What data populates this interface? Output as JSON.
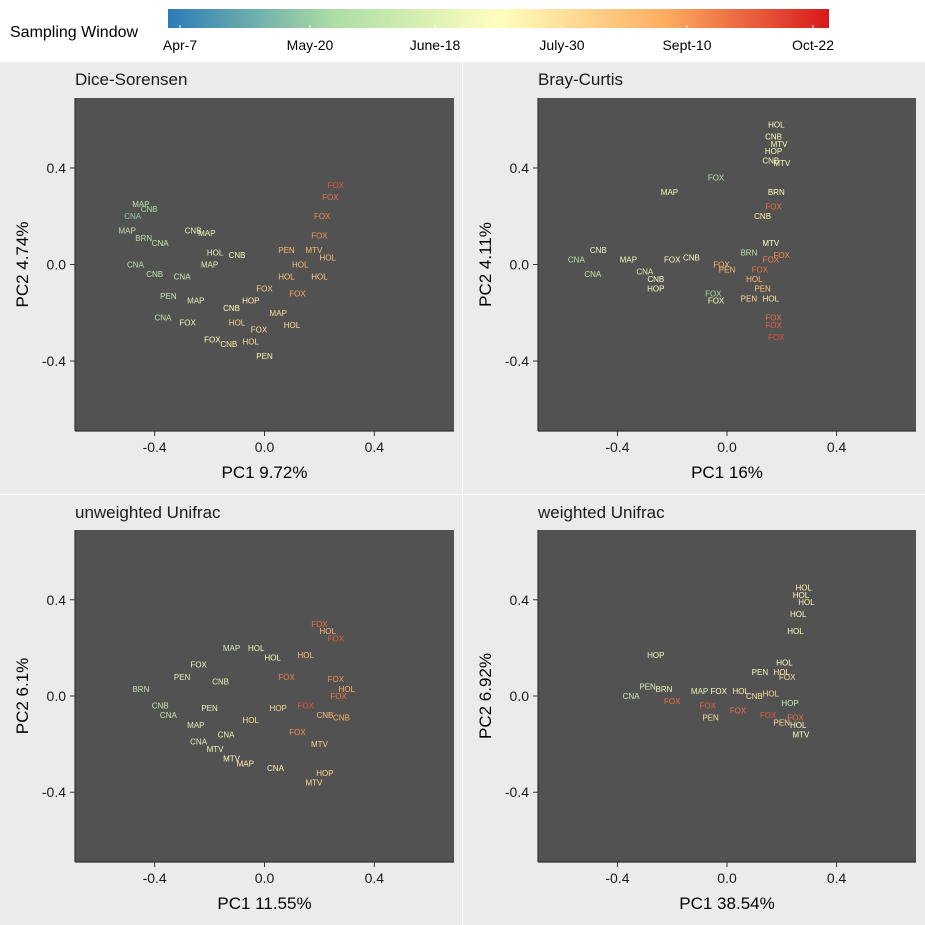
{
  "legend": {
    "title": "Sampling Window",
    "ticks": [
      "Apr-7",
      "May-20",
      "June-18",
      "July-30",
      "Sept-10",
      "Oct-22"
    ],
    "colors": [
      "#2c7bb6",
      "#abdda4",
      "#ffffbf",
      "#fdae61",
      "#d7191c"
    ]
  },
  "chart_data": [
    {
      "type": "scatter",
      "title": "Dice-Sorensen",
      "xlabel": "PC1 9.72%",
      "ylabel": "PC2 4.74%",
      "xlim": [
        -0.69,
        0.69
      ],
      "ylim": [
        -0.69,
        0.69
      ],
      "xticks": [
        -0.4,
        0.0,
        0.4
      ],
      "yticks": [
        -0.4,
        0.0,
        0.4
      ],
      "xtick_labels": [
        "-0.4",
        "0.0",
        "0.4"
      ],
      "ytick_labels": [
        "-0.4",
        "0.0",
        "0.4"
      ],
      "color_variable": "Sampling Window",
      "points": [
        {
          "x": -0.45,
          "y": 0.25,
          "label": "MAP",
          "window": 0.3
        },
        {
          "x": -0.42,
          "y": 0.23,
          "label": "CNB",
          "window": 0.25
        },
        {
          "x": -0.48,
          "y": 0.2,
          "label": "CNA",
          "window": 0.2
        },
        {
          "x": -0.5,
          "y": 0.14,
          "label": "MAP",
          "window": 0.3
        },
        {
          "x": -0.44,
          "y": 0.11,
          "label": "BRN",
          "window": 0.28
        },
        {
          "x": -0.38,
          "y": 0.09,
          "label": "CNA",
          "window": 0.35
        },
        {
          "x": -0.26,
          "y": 0.14,
          "label": "CNB",
          "window": 0.4
        },
        {
          "x": -0.21,
          "y": 0.13,
          "label": "MAP",
          "window": 0.45
        },
        {
          "x": -0.18,
          "y": 0.05,
          "label": "HOL",
          "window": 0.42
        },
        {
          "x": -0.2,
          "y": 0.0,
          "label": "MAP",
          "window": 0.4
        },
        {
          "x": -0.1,
          "y": 0.04,
          "label": "CNB",
          "window": 0.48
        },
        {
          "x": -0.47,
          "y": 0.0,
          "label": "CNA",
          "window": 0.3
        },
        {
          "x": -0.4,
          "y": -0.04,
          "label": "CNB",
          "window": 0.32
        },
        {
          "x": -0.3,
          "y": -0.05,
          "label": "CNA",
          "window": 0.36
        },
        {
          "x": -0.35,
          "y": -0.13,
          "label": "PEN",
          "window": 0.34
        },
        {
          "x": -0.25,
          "y": -0.15,
          "label": "MAP",
          "window": 0.4
        },
        {
          "x": -0.37,
          "y": -0.22,
          "label": "CNA",
          "window": 0.3
        },
        {
          "x": -0.28,
          "y": -0.24,
          "label": "FOX",
          "window": 0.45
        },
        {
          "x": -0.19,
          "y": -0.31,
          "label": "FOX",
          "window": 0.5
        },
        {
          "x": -0.13,
          "y": -0.33,
          "label": "CNB",
          "window": 0.55
        },
        {
          "x": -0.05,
          "y": -0.32,
          "label": "HOL",
          "window": 0.6
        },
        {
          "x": 0.0,
          "y": -0.38,
          "label": "PEN",
          "window": 0.55
        },
        {
          "x": -0.12,
          "y": -0.18,
          "label": "CNB",
          "window": 0.5
        },
        {
          "x": -0.05,
          "y": -0.15,
          "label": "HOP",
          "window": 0.55
        },
        {
          "x": 0.0,
          "y": -0.1,
          "label": "FOX",
          "window": 0.65
        },
        {
          "x": 0.05,
          "y": -0.2,
          "label": "MAP",
          "window": 0.6
        },
        {
          "x": 0.1,
          "y": -0.25,
          "label": "HOL",
          "window": 0.6
        },
        {
          "x": 0.08,
          "y": -0.05,
          "label": "HOL",
          "window": 0.68
        },
        {
          "x": 0.13,
          "y": 0.0,
          "label": "HOL",
          "window": 0.7
        },
        {
          "x": 0.12,
          "y": -0.12,
          "label": "FOX",
          "window": 0.75
        },
        {
          "x": 0.18,
          "y": 0.06,
          "label": "MTV",
          "window": 0.72
        },
        {
          "x": 0.2,
          "y": 0.12,
          "label": "FOX",
          "window": 0.8
        },
        {
          "x": 0.21,
          "y": 0.2,
          "label": "FOX",
          "window": 0.82
        },
        {
          "x": 0.24,
          "y": 0.28,
          "label": "FOX",
          "window": 0.85
        },
        {
          "x": 0.26,
          "y": 0.33,
          "label": "FOX",
          "window": 0.9
        },
        {
          "x": 0.2,
          "y": -0.05,
          "label": "HOL",
          "window": 0.66
        },
        {
          "x": 0.23,
          "y": 0.03,
          "label": "HOL",
          "window": 0.7
        },
        {
          "x": 0.08,
          "y": 0.06,
          "label": "PEN",
          "window": 0.73
        },
        {
          "x": -0.1,
          "y": -0.24,
          "label": "HOL",
          "window": 0.62
        },
        {
          "x": -0.02,
          "y": -0.27,
          "label": "FOX",
          "window": 0.6
        }
      ]
    },
    {
      "type": "scatter",
      "title": "Bray-Curtis",
      "xlabel": "PC1 16%",
      "ylabel": "PC2 4.11%",
      "xlim": [
        -0.69,
        0.69
      ],
      "ylim": [
        -0.69,
        0.69
      ],
      "xticks": [
        -0.4,
        0.0,
        0.4
      ],
      "yticks": [
        -0.4,
        0.0,
        0.4
      ],
      "xtick_labels": [
        "-0.4",
        "0.0",
        "0.4"
      ],
      "ytick_labels": [
        "-0.4",
        "0.0",
        "0.4"
      ],
      "color_variable": "Sampling Window",
      "points": [
        {
          "x": 0.18,
          "y": 0.58,
          "label": "HOL",
          "window": 0.5
        },
        {
          "x": 0.17,
          "y": 0.53,
          "label": "CNB",
          "window": 0.5
        },
        {
          "x": 0.19,
          "y": 0.5,
          "label": "MTV",
          "window": 0.52
        },
        {
          "x": 0.17,
          "y": 0.47,
          "label": "HOP",
          "window": 0.5
        },
        {
          "x": 0.16,
          "y": 0.43,
          "label": "CNB",
          "window": 0.52
        },
        {
          "x": 0.2,
          "y": 0.42,
          "label": "MTV",
          "window": 0.5
        },
        {
          "x": -0.21,
          "y": 0.3,
          "label": "MAP",
          "window": 0.45
        },
        {
          "x": -0.04,
          "y": 0.36,
          "label": "FOX",
          "window": 0.3
        },
        {
          "x": 0.18,
          "y": 0.3,
          "label": "BRN",
          "window": 0.5
        },
        {
          "x": 0.17,
          "y": 0.24,
          "label": "FOX",
          "window": 0.85
        },
        {
          "x": 0.13,
          "y": 0.2,
          "label": "CNB",
          "window": 0.55
        },
        {
          "x": 0.16,
          "y": 0.09,
          "label": "MTV",
          "window": 0.5
        },
        {
          "x": 0.08,
          "y": 0.05,
          "label": "BRN",
          "window": 0.3
        },
        {
          "x": -0.47,
          "y": 0.06,
          "label": "CNB",
          "window": 0.45
        },
        {
          "x": -0.55,
          "y": 0.02,
          "label": "CNA",
          "window": 0.3
        },
        {
          "x": -0.36,
          "y": 0.02,
          "label": "MAP",
          "window": 0.45
        },
        {
          "x": -0.2,
          "y": 0.02,
          "label": "FOX",
          "window": 0.5
        },
        {
          "x": -0.13,
          "y": 0.03,
          "label": "CNB",
          "window": 0.5
        },
        {
          "x": -0.3,
          "y": -0.03,
          "label": "CNA",
          "window": 0.4
        },
        {
          "x": -0.26,
          "y": -0.06,
          "label": "CNB",
          "window": 0.5
        },
        {
          "x": -0.26,
          "y": -0.1,
          "label": "HOP",
          "window": 0.5
        },
        {
          "x": -0.49,
          "y": -0.04,
          "label": "CNA",
          "window": 0.32
        },
        {
          "x": -0.05,
          "y": -0.12,
          "label": "FOX",
          "window": 0.25
        },
        {
          "x": -0.04,
          "y": -0.15,
          "label": "FOX",
          "window": 0.5
        },
        {
          "x": 0.0,
          "y": -0.02,
          "label": "PEN",
          "window": 0.7
        },
        {
          "x": 0.08,
          "y": -0.14,
          "label": "PEN",
          "window": 0.6
        },
        {
          "x": 0.16,
          "y": -0.14,
          "label": "HOL",
          "window": 0.55
        },
        {
          "x": 0.17,
          "y": -0.22,
          "label": "FOX",
          "window": 0.85
        },
        {
          "x": 0.17,
          "y": -0.25,
          "label": "FOX",
          "window": 0.88
        },
        {
          "x": 0.18,
          "y": -0.3,
          "label": "FOX",
          "window": 0.9
        },
        {
          "x": 0.12,
          "y": -0.02,
          "label": "FOX",
          "window": 0.85
        },
        {
          "x": 0.16,
          "y": 0.02,
          "label": "FOX",
          "window": 0.82
        },
        {
          "x": 0.2,
          "y": 0.04,
          "label": "FOX",
          "window": 0.8
        },
        {
          "x": 0.1,
          "y": -0.06,
          "label": "HOL",
          "window": 0.7
        },
        {
          "x": 0.13,
          "y": -0.1,
          "label": "PEN",
          "window": 0.68
        },
        {
          "x": -0.02,
          "y": 0.0,
          "label": "FOX",
          "window": 0.72
        }
      ]
    },
    {
      "type": "scatter",
      "title": "unweighted Unifrac",
      "xlabel": "PC1 11.55%",
      "ylabel": "PC2 6.1%",
      "xlim": [
        -0.69,
        0.69
      ],
      "ylim": [
        -0.69,
        0.69
      ],
      "xticks": [
        -0.4,
        0.0,
        0.4
      ],
      "yticks": [
        -0.4,
        0.0,
        0.4
      ],
      "xtick_labels": [
        "-0.4",
        "0.0",
        "0.4"
      ],
      "ytick_labels": [
        "-0.4",
        "0.0",
        "0.4"
      ],
      "color_variable": "Sampling Window",
      "points": [
        {
          "x": -0.45,
          "y": 0.03,
          "label": "BRN",
          "window": 0.3
        },
        {
          "x": -0.38,
          "y": -0.04,
          "label": "CNB",
          "window": 0.32
        },
        {
          "x": -0.35,
          "y": -0.08,
          "label": "CNA",
          "window": 0.35
        },
        {
          "x": -0.3,
          "y": 0.08,
          "label": "PEN",
          "window": 0.4
        },
        {
          "x": -0.24,
          "y": 0.13,
          "label": "FOX",
          "window": 0.45
        },
        {
          "x": -0.12,
          "y": 0.2,
          "label": "MAP",
          "window": 0.35
        },
        {
          "x": -0.03,
          "y": 0.2,
          "label": "HOL",
          "window": 0.45
        },
        {
          "x": 0.03,
          "y": 0.16,
          "label": "HOL",
          "window": 0.5
        },
        {
          "x": -0.16,
          "y": 0.06,
          "label": "CNB",
          "window": 0.42
        },
        {
          "x": -0.2,
          "y": -0.05,
          "label": "PEN",
          "window": 0.45
        },
        {
          "x": -0.25,
          "y": -0.12,
          "label": "MAP",
          "window": 0.4
        },
        {
          "x": -0.14,
          "y": -0.16,
          "label": "CNA",
          "window": 0.42
        },
        {
          "x": -0.24,
          "y": -0.19,
          "label": "CNA",
          "window": 0.4
        },
        {
          "x": -0.18,
          "y": -0.22,
          "label": "MTV",
          "window": 0.45
        },
        {
          "x": -0.12,
          "y": -0.26,
          "label": "MTV",
          "window": 0.5
        },
        {
          "x": -0.07,
          "y": -0.28,
          "label": "MAP",
          "window": 0.55
        },
        {
          "x": 0.04,
          "y": -0.3,
          "label": "CNA",
          "window": 0.55
        },
        {
          "x": 0.18,
          "y": -0.36,
          "label": "MTV",
          "window": 0.6
        },
        {
          "x": 0.22,
          "y": -0.32,
          "label": "HOP",
          "window": 0.62
        },
        {
          "x": 0.2,
          "y": 0.3,
          "label": "FOX",
          "window": 0.85
        },
        {
          "x": 0.23,
          "y": 0.27,
          "label": "HOL",
          "window": 0.7
        },
        {
          "x": 0.26,
          "y": 0.24,
          "label": "FOX",
          "window": 0.88
        },
        {
          "x": 0.15,
          "y": 0.17,
          "label": "HOL",
          "window": 0.7
        },
        {
          "x": 0.26,
          "y": 0.07,
          "label": "FOX",
          "window": 0.8
        },
        {
          "x": 0.3,
          "y": 0.03,
          "label": "HOL",
          "window": 0.72
        },
        {
          "x": 0.27,
          "y": 0.0,
          "label": "FOX",
          "window": 0.85
        },
        {
          "x": 0.22,
          "y": -0.08,
          "label": "CNB",
          "window": 0.7
        },
        {
          "x": 0.28,
          "y": -0.09,
          "label": "CNB",
          "window": 0.75
        },
        {
          "x": 0.12,
          "y": -0.15,
          "label": "FOX",
          "window": 0.8
        },
        {
          "x": 0.2,
          "y": -0.2,
          "label": "MTV",
          "window": 0.65
        },
        {
          "x": 0.05,
          "y": -0.05,
          "label": "HOP",
          "window": 0.6
        },
        {
          "x": 0.08,
          "y": 0.08,
          "label": "FOX",
          "window": 0.82
        },
        {
          "x": -0.05,
          "y": -0.1,
          "label": "HOL",
          "window": 0.6
        },
        {
          "x": 0.15,
          "y": -0.04,
          "label": "FOX",
          "window": 0.9
        }
      ]
    },
    {
      "type": "scatter",
      "title": "weighted Unifrac",
      "xlabel": "PC1 38.54%",
      "ylabel": "PC2 6.92%",
      "xlim": [
        -0.69,
        0.69
      ],
      "ylim": [
        -0.69,
        0.69
      ],
      "xticks": [
        -0.4,
        0.0,
        0.4
      ],
      "yticks": [
        -0.4,
        0.0,
        0.4
      ],
      "xtick_labels": [
        "-0.4",
        "0.0",
        "0.4"
      ],
      "ytick_labels": [
        "-0.4",
        "0.0",
        "0.4"
      ],
      "color_variable": "Sampling Window",
      "points": [
        {
          "x": 0.28,
          "y": 0.45,
          "label": "HOL",
          "window": 0.55
        },
        {
          "x": 0.27,
          "y": 0.42,
          "label": "HOL",
          "window": 0.5
        },
        {
          "x": 0.29,
          "y": 0.39,
          "label": "HOL",
          "window": 0.55
        },
        {
          "x": 0.26,
          "y": 0.34,
          "label": "HOL",
          "window": 0.5
        },
        {
          "x": 0.25,
          "y": 0.27,
          "label": "HOL",
          "window": 0.5
        },
        {
          "x": -0.26,
          "y": 0.17,
          "label": "HOP",
          "window": 0.45
        },
        {
          "x": 0.21,
          "y": 0.14,
          "label": "HOL",
          "window": 0.5
        },
        {
          "x": 0.2,
          "y": 0.1,
          "label": "HOL",
          "window": 0.55
        },
        {
          "x": 0.12,
          "y": 0.1,
          "label": "PEN",
          "window": 0.45
        },
        {
          "x": 0.22,
          "y": 0.08,
          "label": "FOX",
          "window": 0.6
        },
        {
          "x": -0.29,
          "y": 0.04,
          "label": "PEN",
          "window": 0.4
        },
        {
          "x": -0.23,
          "y": 0.03,
          "label": "BRN",
          "window": 0.45
        },
        {
          "x": -0.1,
          "y": 0.02,
          "label": "MAP",
          "window": 0.42
        },
        {
          "x": -0.03,
          "y": 0.02,
          "label": "FOX",
          "window": 0.5
        },
        {
          "x": 0.05,
          "y": 0.02,
          "label": "HOL",
          "window": 0.55
        },
        {
          "x": 0.1,
          "y": 0.0,
          "label": "CNB",
          "window": 0.6
        },
        {
          "x": 0.16,
          "y": 0.01,
          "label": "HOL",
          "window": 0.62
        },
        {
          "x": 0.23,
          "y": -0.03,
          "label": "HOP",
          "window": 0.35
        },
        {
          "x": -0.35,
          "y": 0.0,
          "label": "CNA",
          "window": 0.35
        },
        {
          "x": -0.2,
          "y": -0.02,
          "label": "FOX",
          "window": 0.85
        },
        {
          "x": -0.07,
          "y": -0.04,
          "label": "FOX",
          "window": 0.88
        },
        {
          "x": 0.04,
          "y": -0.06,
          "label": "FOX",
          "window": 0.85
        },
        {
          "x": 0.15,
          "y": -0.08,
          "label": "FOX",
          "window": 0.9
        },
        {
          "x": 0.25,
          "y": -0.09,
          "label": "FOX",
          "window": 0.85
        },
        {
          "x": -0.06,
          "y": -0.09,
          "label": "PEN",
          "window": 0.6
        },
        {
          "x": 0.2,
          "y": -0.11,
          "label": "PEN",
          "window": 0.6
        },
        {
          "x": 0.26,
          "y": -0.12,
          "label": "HOL",
          "window": 0.5
        },
        {
          "x": 0.27,
          "y": -0.16,
          "label": "MTV",
          "window": 0.5
        }
      ]
    }
  ]
}
